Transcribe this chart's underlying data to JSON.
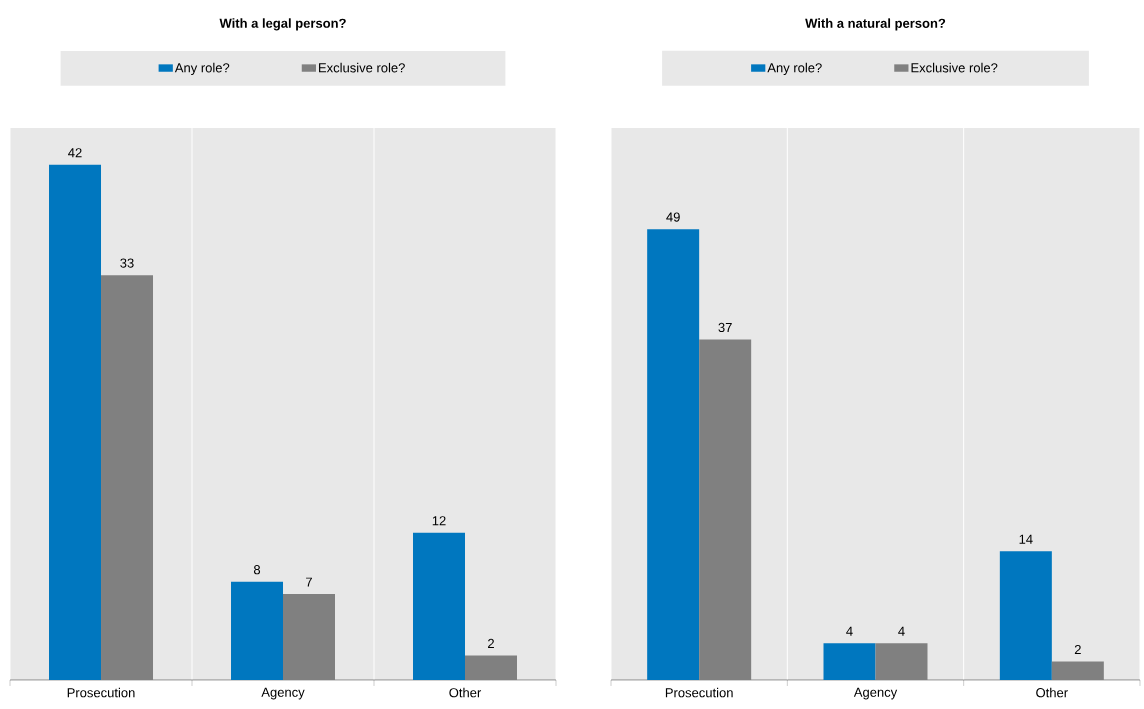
{
  "chart_data": [
    {
      "type": "bar",
      "title": "With a legal person?",
      "categories": [
        "Prosecution",
        "Agency",
        "Other"
      ],
      "series": [
        {
          "name": "Any role?",
          "color": "#0077bf",
          "values": [
            42,
            8,
            12
          ]
        },
        {
          "name": "Exclusive role?",
          "color": "#808080",
          "values": [
            33,
            7,
            2
          ]
        }
      ],
      "ylim": [
        0,
        45
      ],
      "grid": true,
      "legend": "top",
      "data_labels": true
    },
    {
      "type": "bar",
      "title": "With a natural person?",
      "categories": [
        "Prosecution",
        "Agency",
        "Other"
      ],
      "series": [
        {
          "name": "Any role?",
          "color": "#0077bf",
          "values": [
            49,
            4,
            14
          ]
        },
        {
          "name": "Exclusive role?",
          "color": "#808080",
          "values": [
            37,
            4,
            2
          ]
        }
      ],
      "ylim": [
        0,
        60
      ],
      "grid": true,
      "legend": "top",
      "data_labels": true
    }
  ]
}
